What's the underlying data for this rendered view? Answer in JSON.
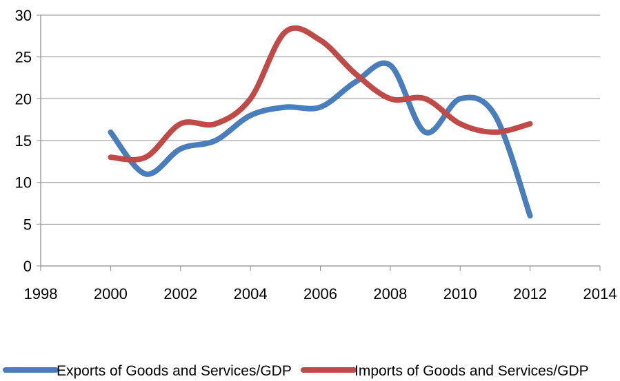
{
  "chart_data": {
    "type": "line",
    "title": "",
    "xlabel": "",
    "ylabel": "",
    "xlim": [
      1998,
      2014
    ],
    "ylim": [
      0,
      30
    ],
    "x_ticks": [
      "1998",
      "2000",
      "2002",
      "2004",
      "2006",
      "2008",
      "2010",
      "2012",
      "2014"
    ],
    "y_ticks": [
      "0",
      "5",
      "10",
      "15",
      "20",
      "25",
      "30"
    ],
    "grid": "horizontal",
    "legend_position": "bottom",
    "series": [
      {
        "name": "Exports of Goods and Services/GDP",
        "color": "#4a7ebb",
        "x": [
          2000,
          2001,
          2002,
          2003,
          2004,
          2005,
          2006,
          2007,
          2008,
          2009,
          2010,
          2011,
          2012
        ],
        "y": [
          16,
          11,
          14,
          15,
          18,
          19,
          19,
          22,
          24,
          16,
          20,
          18,
          6
        ]
      },
      {
        "name": "Imports of Goods and Services/GDP",
        "color": "#be4b48",
        "x": [
          2000,
          2001,
          2002,
          2003,
          2004,
          2005,
          2006,
          2007,
          2008,
          2009,
          2010,
          2011,
          2012
        ],
        "y": [
          13,
          13,
          17,
          17,
          20,
          28,
          27,
          23,
          20,
          20,
          17,
          16,
          17
        ]
      }
    ]
  }
}
